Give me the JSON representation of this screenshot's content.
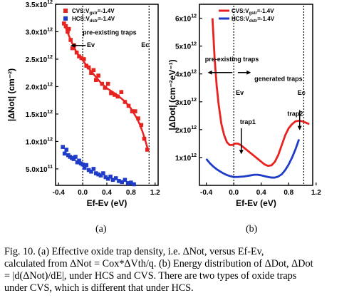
{
  "panel_labels": [
    "(a)",
    "(b)"
  ],
  "caption": {
    "lines": [
      "Fig. 10. (a) Effective oxide trap density, i.e. ΔNot, versus Ef-Ev,",
      "calculated from ΔNot = Cox*ΔVth/q. (b) Energy distribution of ΔDot, ΔDot",
      "= |d(ΔNot)/dE|,  under HCS and CVS. There are two types of oxide traps",
      "under CVS, which is different that under HCS."
    ]
  },
  "colors": {
    "cvs": "#e8231f",
    "hcs": "#1f3cc8"
  },
  "chart_data": [
    {
      "type": "scatter",
      "xlabel": "Ef-Ev (eV)",
      "ylabel": "|ΔNot| (cm⁻²)",
      "xlim": [
        -0.45,
        1.25
      ],
      "ylim": [
        200000000000.0,
        3500000000000.0
      ],
      "xticks": [
        -0.4,
        0.0,
        0.4,
        0.8,
        1.2
      ],
      "xtick_labels": [
        "-0.4",
        "0.0",
        "0.4",
        "0.8",
        "1.2"
      ],
      "yticks": [
        500000000000.0,
        1000000000000.0,
        1500000000000.0,
        2000000000000.0,
        2500000000000.0,
        3000000000000.0,
        3500000000000.0
      ],
      "ytick_labels": [
        [
          "5.0x10",
          "11"
        ],
        [
          "1.0x10",
          "12"
        ],
        [
          "1.5x10",
          "12"
        ],
        [
          "2.0x10",
          "12"
        ],
        [
          "2.5x10",
          "12"
        ],
        [
          "3.0x10",
          "12"
        ],
        [
          "3.5x10",
          "12"
        ]
      ],
      "vlines": [
        0.0,
        1.1
      ],
      "annotations": [
        {
          "text": "pre-existing traps",
          "x": 0.0,
          "y": 2950000000000.0
        },
        {
          "text": "Ev",
          "x": 0.07,
          "y": 2720000000000.0
        },
        {
          "text": "Ec",
          "x": 0.97,
          "y": 2720000000000.0
        }
      ],
      "series": [
        {
          "name": "CVS:Vgstr=-1.4V",
          "legend": [
            "CVS:V",
            "gstr",
            "=-1.4V"
          ],
          "color": "#e8231f",
          "marker": "square",
          "x": [
            -0.31,
            -0.28,
            -0.25,
            -0.23,
            -0.2,
            -0.17,
            -0.14,
            -0.1,
            -0.06,
            -0.02,
            0.02,
            0.06,
            0.1,
            0.14,
            0.18,
            0.22,
            0.26,
            0.32,
            0.37,
            0.42,
            0.47,
            0.53,
            0.58,
            0.64,
            0.7,
            0.76,
            0.82,
            0.87,
            0.92,
            0.97,
            1.02,
            1.07
          ],
          "y": [
            3150000000000.0,
            3100000000000.0,
            3000000000000.0,
            3050000000000.0,
            2850000000000.0,
            2700000000000.0,
            2750000000000.0,
            2620000000000.0,
            2550000000000.0,
            2520000000000.0,
            2500000000000.0,
            2380000000000.0,
            2350000000000.0,
            2250000000000.0,
            2300000000000.0,
            2120000000000.0,
            2200000000000.0,
            2050000000000.0,
            1980000000000.0,
            2050000000000.0,
            1880000000000.0,
            1850000000000.0,
            1820000000000.0,
            1900000000000.0,
            1720000000000.0,
            1650000000000.0,
            1550000000000.0,
            1550000000000.0,
            1420000000000.0,
            1300000000000.0,
            1050000000000.0,
            850000000000.0
          ],
          "fit_x": [
            -0.31,
            -0.2,
            -0.1,
            0.0,
            0.1,
            0.2,
            0.3,
            0.4,
            0.5,
            0.6,
            0.7,
            0.8,
            0.9,
            0.95,
            1.0,
            1.05,
            1.08
          ],
          "fit_y": [
            3150000000000.0,
            2850000000000.0,
            2620000000000.0,
            2480000000000.0,
            2330000000000.0,
            2200000000000.0,
            2070000000000.0,
            1970000000000.0,
            1900000000000.0,
            1820000000000.0,
            1730000000000.0,
            1600000000000.0,
            1420000000000.0,
            1300000000000.0,
            1150000000000.0,
            970000000000.0,
            850000000000.0
          ]
        },
        {
          "name": "HCS:Vdstr=-1.4V",
          "legend": [
            "HCS:V",
            "dstr",
            "=-1.4V"
          ],
          "color": "#1f3cc8",
          "marker": "square",
          "x": [
            -0.33,
            -0.3,
            -0.27,
            -0.24,
            -0.21,
            -0.18,
            -0.15,
            -0.12,
            -0.09,
            -0.06,
            -0.03,
            0.0,
            0.03,
            0.06,
            0.1,
            0.14,
            0.18,
            0.22,
            0.26,
            0.3,
            0.34,
            0.38,
            0.42,
            0.46,
            0.5,
            0.55,
            0.6,
            0.65,
            0.7,
            0.75,
            0.8,
            0.85
          ],
          "y": [
            900000000000.0,
            780000000000.0,
            850000000000.0,
            750000000000.0,
            720000000000.0,
            700000000000.0,
            680000000000.0,
            720000000000.0,
            620000000000.0,
            650000000000.0,
            600000000000.0,
            580000000000.0,
            520000000000.0,
            570000000000.0,
            480000000000.0,
            450000000000.0,
            500000000000.0,
            420000000000.0,
            400000000000.0,
            380000000000.0,
            420000000000.0,
            350000000000.0,
            320000000000.0,
            360000000000.0,
            300000000000.0,
            330000000000.0,
            280000000000.0,
            260000000000.0,
            300000000000.0,
            240000000000.0,
            250000000000.0,
            220000000000.0
          ]
        }
      ]
    },
    {
      "type": "line",
      "xlabel": "Ef-Ev (eV)",
      "ylabel": "|ΔDot| (cm⁻²eV⁻¹)",
      "xlim": [
        -0.5,
        1.15
      ],
      "ylim": [
        0,
        6500000000000.0
      ],
      "xticks": [
        -0.4,
        0.0,
        0.4,
        0.8,
        1.2
      ],
      "xtick_labels": [
        "-0.4",
        "0.0",
        "0.4",
        "0.8",
        "1.2"
      ],
      "yticks": [
        1000000000000.0,
        2000000000000.0,
        3000000000000.0,
        4000000000000.0,
        5000000000000.0,
        6000000000000.0
      ],
      "ytick_labels": [
        [
          "1x10",
          "12"
        ],
        [
          "2x10",
          "12"
        ],
        [
          "3x10",
          "12"
        ],
        [
          "4x10",
          "12"
        ],
        [
          "5x10",
          "12"
        ],
        [
          "6x10",
          "12"
        ]
      ],
      "vlines": [
        0.0,
        1.02
      ],
      "annotations": [
        {
          "text": "pre-existing traps",
          "x": -0.42,
          "y": 4450000000000.0
        },
        {
          "text": "generated traps",
          "x": 0.3,
          "y": 3750000000000.0
        },
        {
          "text": "Ev",
          "x": 0.03,
          "y": 3250000000000.0
        },
        {
          "text": "Ec",
          "x": 0.93,
          "y": 3250000000000.0
        },
        {
          "text": "trap1",
          "x": 0.09,
          "y": 2200000000000.0
        },
        {
          "text": "trap2",
          "x": 0.78,
          "y": 2500000000000.0
        }
      ],
      "series": [
        {
          "name": "CVS:Vgstr=-1.4V",
          "legend": [
            "CVS:V",
            "gstr",
            "=-1.4V"
          ],
          "color": "#e8231f",
          "x": [
            -0.31,
            -0.28,
            -0.25,
            -0.22,
            -0.18,
            -0.14,
            -0.1,
            -0.06,
            -0.02,
            0.02,
            0.06,
            0.1,
            0.15,
            0.2,
            0.25,
            0.3,
            0.35,
            0.4,
            0.45,
            0.5,
            0.55,
            0.6,
            0.65,
            0.7,
            0.75,
            0.8,
            0.85,
            0.9,
            0.95,
            1.0,
            1.05,
            1.1
          ],
          "y": [
            6000000000000.0,
            4600000000000.0,
            3600000000000.0,
            2900000000000.0,
            2200000000000.0,
            1800000000000.0,
            1550000000000.0,
            1450000000000.0,
            1450000000000.0,
            1500000000000.0,
            1500000000000.0,
            1450000000000.0,
            1350000000000.0,
            1250000000000.0,
            1150000000000.0,
            1050000000000.0,
            950000000000.0,
            850000000000.0,
            750000000000.0,
            700000000000.0,
            720000000000.0,
            850000000000.0,
            1100000000000.0,
            1450000000000.0,
            1800000000000.0,
            2050000000000.0,
            2200000000000.0,
            2300000000000.0,
            2320000000000.0,
            2300000000000.0,
            2250000000000.0,
            2200000000000.0
          ]
        },
        {
          "name": "HCS:Vdstr=-1.4V",
          "legend": [
            "HCS:V",
            "dstr",
            "=-1.4V"
          ],
          "color": "#1f3cc8",
          "x": [
            -0.4,
            -0.35,
            -0.3,
            -0.25,
            -0.2,
            -0.15,
            -0.1,
            -0.05,
            0.0,
            0.05,
            0.1,
            0.15,
            0.2,
            0.25,
            0.3,
            0.35,
            0.4,
            0.45,
            0.5,
            0.55,
            0.6,
            0.65,
            0.7,
            0.75,
            0.8,
            0.85,
            0.9,
            0.95
          ],
          "y": [
            950000000000.0,
            800000000000.0,
            680000000000.0,
            580000000000.0,
            500000000000.0,
            430000000000.0,
            370000000000.0,
            330000000000.0,
            300000000000.0,
            300000000000.0,
            310000000000.0,
            320000000000.0,
            340000000000.0,
            360000000000.0,
            380000000000.0,
            380000000000.0,
            360000000000.0,
            330000000000.0,
            300000000000.0,
            280000000000.0,
            280000000000.0,
            320000000000.0,
            400000000000.0,
            550000000000.0,
            750000000000.0,
            1000000000000.0,
            1300000000000.0,
            1650000000000.0
          ]
        }
      ]
    }
  ]
}
